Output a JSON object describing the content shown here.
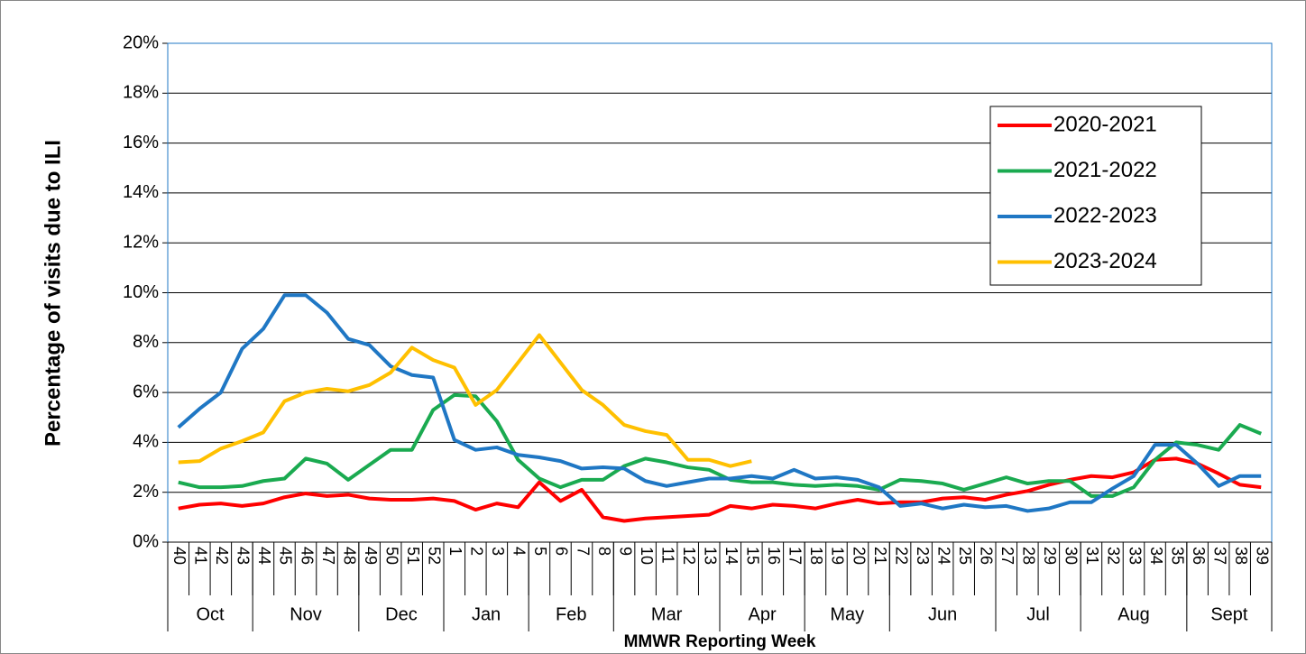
{
  "chart_data": {
    "type": "line",
    "x_label": "MMWR Reporting Week",
    "y_label": "Percentage of visits due to ILI",
    "categories": [
      "40",
      "41",
      "42",
      "43",
      "44",
      "45",
      "46",
      "47",
      "48",
      "49",
      "50",
      "51",
      "52",
      "1",
      "2",
      "3",
      "4",
      "5",
      "6",
      "7",
      "8",
      "9",
      "10",
      "11",
      "12",
      "13",
      "14",
      "15",
      "16",
      "17",
      "18",
      "19",
      "20",
      "21",
      "22",
      "23",
      "24",
      "25",
      "26",
      "27",
      "28",
      "29",
      "30",
      "31",
      "32",
      "33",
      "34",
      "35",
      "36",
      "37",
      "38",
      "39"
    ],
    "month_groups": [
      {
        "label": "Oct",
        "span": 4
      },
      {
        "label": "Nov",
        "span": 5
      },
      {
        "label": "Dec",
        "span": 4
      },
      {
        "label": "Jan",
        "span": 4
      },
      {
        "label": "Feb",
        "span": 4
      },
      {
        "label": "Mar",
        "span": 5
      },
      {
        "label": "Apr",
        "span": 4
      },
      {
        "label": "May",
        "span": 4
      },
      {
        "label": "Jun",
        "span": 5
      },
      {
        "label": "Jul",
        "span": 4
      },
      {
        "label": "Aug",
        "span": 5
      },
      {
        "label": "Sept",
        "span": 4
      }
    ],
    "ylim": [
      0,
      20
    ],
    "yticks": [
      {
        "value": 0,
        "label": "0%"
      },
      {
        "value": 2,
        "label": "2%"
      },
      {
        "value": 4,
        "label": "4%"
      },
      {
        "value": 6,
        "label": "6%"
      },
      {
        "value": 8,
        "label": "8%"
      },
      {
        "value": 10,
        "label": "10%"
      },
      {
        "value": 12,
        "label": "12%"
      },
      {
        "value": 14,
        "label": "14%"
      },
      {
        "value": 16,
        "label": "16%"
      },
      {
        "value": 18,
        "label": "18%"
      },
      {
        "value": 20,
        "label": "20%"
      }
    ],
    "grid": true,
    "legend": "upper right",
    "series": [
      {
        "name": "2020-2021",
        "color": "#ff0000",
        "values": [
          1.35,
          1.5,
          1.55,
          1.45,
          1.55,
          1.8,
          1.95,
          1.85,
          1.9,
          1.75,
          1.7,
          1.7,
          1.75,
          1.65,
          1.3,
          1.55,
          1.4,
          2.4,
          1.65,
          2.1,
          1.0,
          0.85,
          0.95,
          1.0,
          1.05,
          1.1,
          1.45,
          1.35,
          1.5,
          1.45,
          1.35,
          1.55,
          1.7,
          1.55,
          1.6,
          1.6,
          1.75,
          1.8,
          1.7,
          1.9,
          2.05,
          2.3,
          2.5,
          2.65,
          2.6,
          2.8,
          3.3,
          3.35,
          3.15,
          2.75,
          2.3,
          2.2
        ]
      },
      {
        "name": "2021-2022",
        "color": "#1aaa50",
        "values": [
          2.4,
          2.2,
          2.2,
          2.25,
          2.45,
          2.55,
          3.35,
          3.15,
          2.5,
          3.1,
          3.7,
          3.7,
          5.3,
          5.9,
          5.85,
          4.85,
          3.3,
          2.55,
          2.2,
          2.5,
          2.5,
          3.05,
          3.35,
          3.2,
          3.0,
          2.9,
          2.5,
          2.4,
          2.4,
          2.3,
          2.25,
          2.3,
          2.25,
          2.1,
          2.5,
          2.45,
          2.35,
          2.1,
          2.35,
          2.6,
          2.35,
          2.45,
          2.45,
          1.85,
          1.85,
          2.2,
          3.3,
          4.0,
          3.9,
          3.7,
          4.7,
          4.35
        ]
      },
      {
        "name": "2022-2023",
        "color": "#1f77c4",
        "values": [
          4.6,
          5.35,
          6.0,
          7.75,
          8.55,
          9.9,
          9.9,
          9.2,
          8.15,
          7.9,
          7.05,
          6.7,
          6.6,
          4.1,
          3.7,
          3.8,
          3.5,
          3.4,
          3.25,
          2.95,
          3.0,
          2.95,
          2.45,
          2.25,
          2.4,
          2.55,
          2.55,
          2.65,
          2.55,
          2.9,
          2.55,
          2.6,
          2.5,
          2.2,
          1.45,
          1.55,
          1.35,
          1.5,
          1.4,
          1.45,
          1.25,
          1.35,
          1.6,
          1.6,
          2.15,
          2.65,
          3.9,
          3.9,
          3.15,
          2.25,
          2.65,
          2.65
        ]
      },
      {
        "name": "2023-2024",
        "color": "#ffc000",
        "values": [
          3.2,
          3.25,
          3.75,
          4.05,
          4.4,
          5.65,
          6.0,
          6.15,
          6.05,
          6.3,
          6.8,
          7.8,
          7.3,
          7.0,
          5.5,
          6.1,
          7.2,
          8.3,
          7.2,
          6.1,
          5.5,
          4.7,
          4.45,
          4.3,
          3.3,
          3.3,
          3.05,
          3.25,
          null,
          null,
          null,
          null,
          null,
          null,
          null,
          null,
          null,
          null,
          null,
          null,
          null,
          null,
          null,
          null,
          null,
          null,
          null,
          null,
          null,
          null,
          null,
          null
        ]
      }
    ]
  }
}
